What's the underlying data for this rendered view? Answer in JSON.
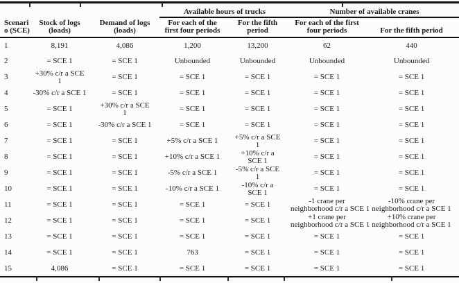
{
  "table": {
    "groups": [
      "Available hours of trucks",
      "Number of available cranes"
    ],
    "headers": {
      "scenario": "Scenari\no (SCE)",
      "stock": "Stock of logs\n(loads)",
      "demand": "Demand of logs\n(loads)",
      "trucks_first_four": "For each of the\nfirst four periods",
      "trucks_fifth": "For the fifth\nperiod",
      "cranes_first_four": "For each of the first\nfour periods",
      "cranes_fifth": "For the fifth period"
    },
    "rows": [
      [
        "1",
        "8,191",
        "4,086",
        "1,200",
        "13,200",
        "62",
        "440"
      ],
      [
        "2",
        "= SCE 1",
        "= SCE 1",
        "Unbounded",
        "Unbounded",
        "Unbounded",
        "Unbounded"
      ],
      [
        "3",
        "+30% c/r a SCE\n1",
        "= SCE 1",
        "= SCE 1",
        "= SCE 1",
        "= SCE 1",
        "= SCE 1"
      ],
      [
        "4",
        "-30% c/r a SCE 1",
        "= SCE 1",
        "= SCE 1",
        "= SCE 1",
        "= SCE 1",
        "= SCE 1"
      ],
      [
        "5",
        "= SCE 1",
        "+30% c/r a SCE\n1",
        "= SCE 1",
        "= SCE 1",
        "= SCE 1",
        "= SCE 1"
      ],
      [
        "6",
        "= SCE 1",
        "-30% c/r a SCE 1",
        "= SCE 1",
        "= SCE 1",
        "= SCE 1",
        "= SCE 1"
      ],
      [
        "7",
        "= SCE 1",
        "= SCE 1",
        "+5% c/r a SCE 1",
        "+5% c/r a SCE\n1",
        "= SCE 1",
        "= SCE 1"
      ],
      [
        "8",
        "= SCE 1",
        "= SCE 1",
        "+10% c/r a SCE 1",
        "+10% c/r a\nSCE 1",
        "= SCE 1",
        "= SCE 1"
      ],
      [
        "9",
        "= SCE 1",
        "= SCE 1",
        "-5% c/r a SCE 1",
        "-5% c/r a SCE\n1",
        "= SCE 1",
        "= SCE 1"
      ],
      [
        "10",
        "= SCE 1",
        "= SCE 1",
        "-10% c/r a SCE 1",
        "-10% c/r a\nSCE 1",
        "= SCE 1",
        "= SCE 1"
      ],
      [
        "11",
        "= SCE 1",
        "= SCE 1",
        "= SCE 1",
        "= SCE 1",
        "-1 crane per\nneighborhood c/r a SCE 1",
        "-10% crane per\nneighborhood c/r a SCE 1"
      ],
      [
        "12",
        "= SCE 1",
        "= SCE 1",
        "= SCE 1",
        "= SCE 1",
        "+1 crane per\nneighborhood c/r a SCE 1",
        "+10% crane per\nneighborhood c/r a SCE 1"
      ],
      [
        "13",
        "= SCE 1",
        "= SCE 1",
        "= SCE 1",
        "= SCE 1",
        "= SCE 1",
        "= SCE 1"
      ],
      [
        "14",
        "= SCE 1",
        "= SCE 1",
        "763",
        "= SCE 1",
        "= SCE 1",
        "= SCE 1"
      ],
      [
        "15",
        "4,086",
        "= SCE 1",
        "= SCE 1",
        "= SCE 1",
        "= SCE 1",
        "= SCE 1"
      ]
    ],
    "column_ids": [
      "scenario",
      "stock",
      "demand",
      "trucks-first-four",
      "trucks-fifth",
      "cranes-first-four",
      "cranes-fifth"
    ]
  },
  "colors": {
    "ink": "#1b1b1b",
    "rule": "#0d0d0d",
    "paper": "#fcfcfa"
  }
}
